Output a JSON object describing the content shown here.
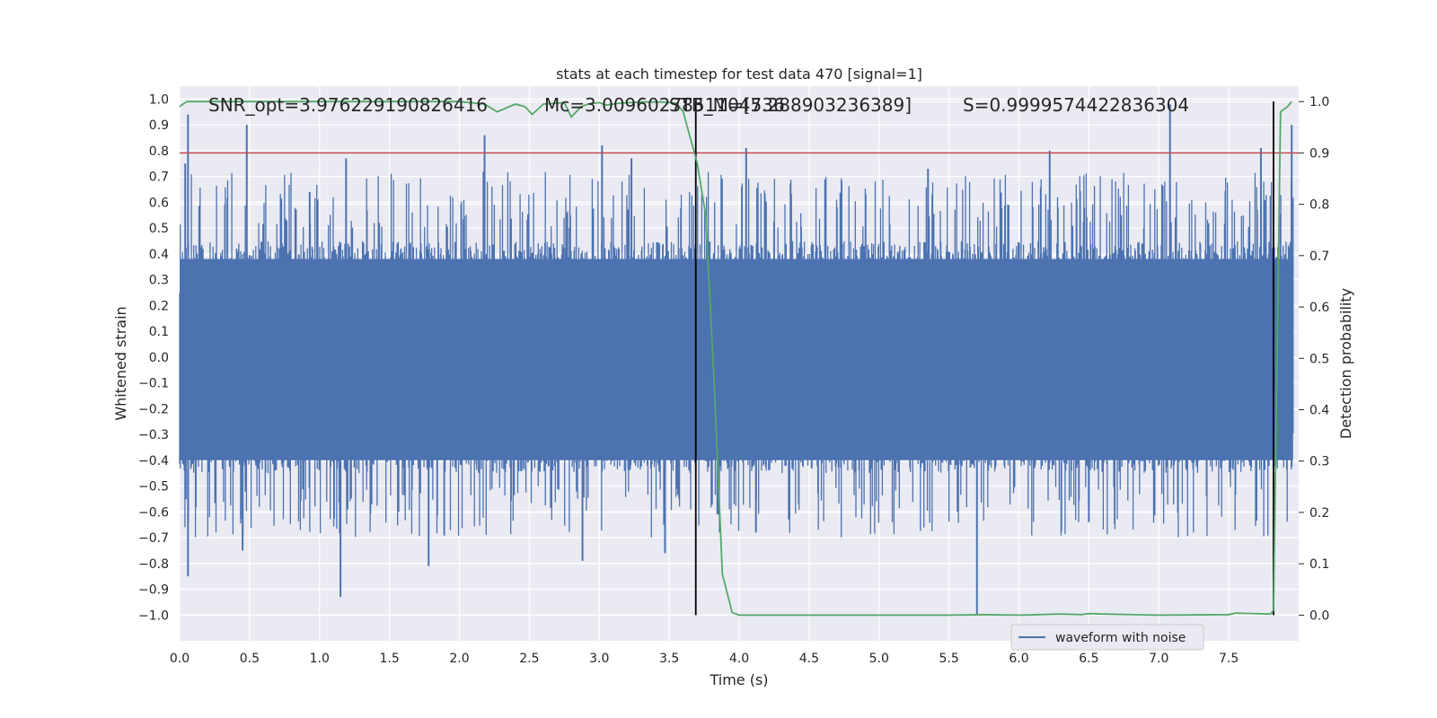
{
  "chart_data": {
    "type": "line",
    "title": "stats at each timestep for test data 470 [signal=1]",
    "xlabel": "Time (s)",
    "ylabel_left": "Whitened strain",
    "ylabel_right": "Detection probability",
    "xlim": [
      0.0,
      8.0
    ],
    "ylim_left": [
      -1.1,
      1.05
    ],
    "ylim_right": [
      -0.05,
      1.03
    ],
    "x_ticks": [
      "0.0",
      "0.5",
      "1.0",
      "1.5",
      "2.0",
      "2.5",
      "3.0",
      "3.5",
      "4.0",
      "4.5",
      "5.0",
      "5.5",
      "6.0",
      "6.5",
      "7.0",
      "7.5"
    ],
    "y_left_ticks": [
      "1.0",
      "0.9",
      "0.8",
      "0.7",
      "0.6",
      "0.5",
      "0.4",
      "0.3",
      "0.2",
      "0.1",
      "0.0",
      "−0.1",
      "−0.2",
      "−0.3",
      "−0.4",
      "−0.5",
      "−0.6",
      "−0.7",
      "−0.8",
      "−0.9",
      "−1.0"
    ],
    "y_right_ticks": [
      "1.0",
      "0.9",
      "0.8",
      "0.7",
      "0.6",
      "0.5",
      "0.4",
      "0.3",
      "0.2",
      "0.1",
      "0.0"
    ],
    "grid": true,
    "legend_position": "lower-right",
    "annotations": [
      {
        "text": "SNR_opt=3.976229190826416"
      },
      {
        "text": "Mc=3.0096027851104736"
      },
      {
        "text": "STB_M=[5.288903236389]"
      },
      {
        "text": "S=0.9999574422836304"
      }
    ],
    "threshold_line": {
      "y_prob": 0.9,
      "color": "#c44e52"
    },
    "vertical_lines": [
      {
        "x": 3.69,
        "color": "#000000"
      },
      {
        "x": 7.82,
        "color": "#000000"
      }
    ],
    "series": [
      {
        "name": "waveform with noise",
        "axis": "left",
        "color": "#4c72b0",
        "envelope_upper": 0.45,
        "envelope_lower": -0.45,
        "spikes_up": [
          [
            0.06,
            0.94
          ],
          [
            0.04,
            0.75
          ],
          [
            0.48,
            0.9
          ],
          [
            0.93,
            0.64
          ],
          [
            1.19,
            0.77
          ],
          [
            2.18,
            0.86
          ],
          [
            3.02,
            0.82
          ],
          [
            3.23,
            0.77
          ],
          [
            4.05,
            0.81
          ],
          [
            5.35,
            0.73
          ],
          [
            6.22,
            0.8
          ],
          [
            7.08,
            0.98
          ],
          [
            7.73,
            0.81
          ],
          [
            7.95,
            0.9
          ]
        ],
        "spikes_down": [
          [
            0.06,
            -0.85
          ],
          [
            1.15,
            -0.93
          ],
          [
            1.78,
            -0.81
          ],
          [
            2.88,
            -0.79
          ],
          [
            3.47,
            -0.76
          ],
          [
            5.7,
            -1.0
          ],
          [
            4.12,
            -0.68
          ],
          [
            6.5,
            -0.64
          ],
          [
            0.45,
            -0.75
          ]
        ]
      },
      {
        "name": "detection probability",
        "axis": "right",
        "color": "#55a868",
        "x": [
          0.0,
          0.05,
          0.2,
          0.6,
          1.0,
          1.5,
          2.0,
          2.18,
          2.27,
          2.4,
          2.47,
          2.52,
          2.6,
          2.75,
          2.8,
          2.87,
          2.92,
          3.0,
          3.05,
          3.15,
          3.3,
          3.45,
          3.55,
          3.6,
          3.65,
          3.7,
          3.76,
          3.82,
          3.88,
          3.95,
          4.0,
          4.5,
          5.0,
          5.5,
          5.75,
          6.0,
          6.3,
          6.45,
          6.5,
          6.6,
          7.0,
          7.5,
          7.55,
          7.8,
          7.82,
          7.87,
          7.92,
          7.95
        ],
        "y": [
          0.99,
          1.0,
          1.0,
          1.0,
          1.0,
          1.0,
          1.0,
          0.995,
          0.98,
          0.995,
          0.99,
          0.975,
          0.995,
          0.998,
          0.97,
          0.99,
          0.995,
          0.998,
          0.993,
          0.997,
          0.999,
          0.999,
          0.997,
          0.98,
          0.93,
          0.88,
          0.78,
          0.46,
          0.08,
          0.005,
          0.0,
          0.0,
          0.0,
          0.0,
          0.001,
          0.0,
          0.002,
          0.001,
          0.003,
          0.002,
          0.0,
          0.001,
          0.004,
          0.002,
          0.01,
          0.98,
          0.99,
          1.0
        ]
      }
    ]
  }
}
